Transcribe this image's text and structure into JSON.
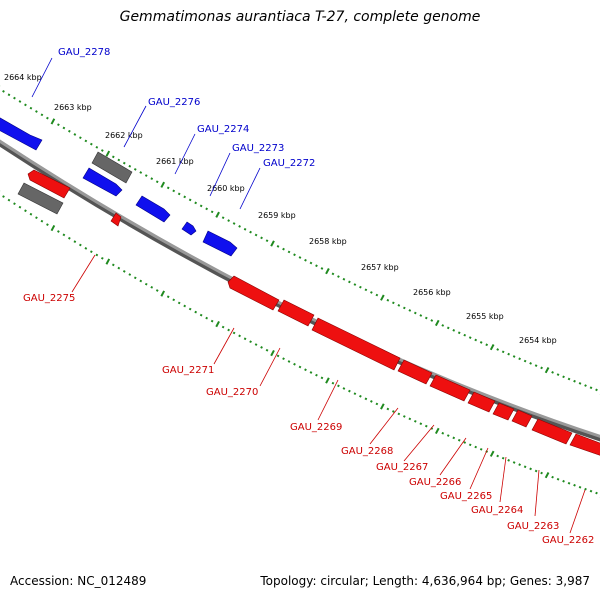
{
  "title": "Gemmatimonas aurantiaca T-27, complete genome",
  "accession": "Accession: NC_012489",
  "topology": "Topology: circular; Length: 4,636,964 bp; Genes: 3,987",
  "colors": {
    "forward": "#1010ee",
    "reverse": "#ee1010",
    "other": "#666666",
    "backbone": "#888888",
    "ticks": "#1f8a1f",
    "label_forward": "#0000cc",
    "label_reverse": "#cc0000"
  },
  "scale_labels": [
    "2664 kbp",
    "2663 kbp",
    "2662 kbp",
    "2661 kbp",
    "2660 kbp",
    "2659 kbp",
    "2658 kbp",
    "2657 kbp",
    "2656 kbp",
    "2655 kbp",
    "2654 kbp"
  ],
  "forward_labels": [
    "GAU_2278",
    "GAU_2276",
    "GAU_2274",
    "GAU_2273",
    "GAU_2272"
  ],
  "reverse_labels": [
    "GAU_2275",
    "GAU_2271",
    "GAU_2270",
    "GAU_2269",
    "GAU_2268",
    "GAU_2267",
    "GAU_2266",
    "GAU_2265",
    "GAU_2264",
    "GAU_2263",
    "GAU_2262"
  ]
}
